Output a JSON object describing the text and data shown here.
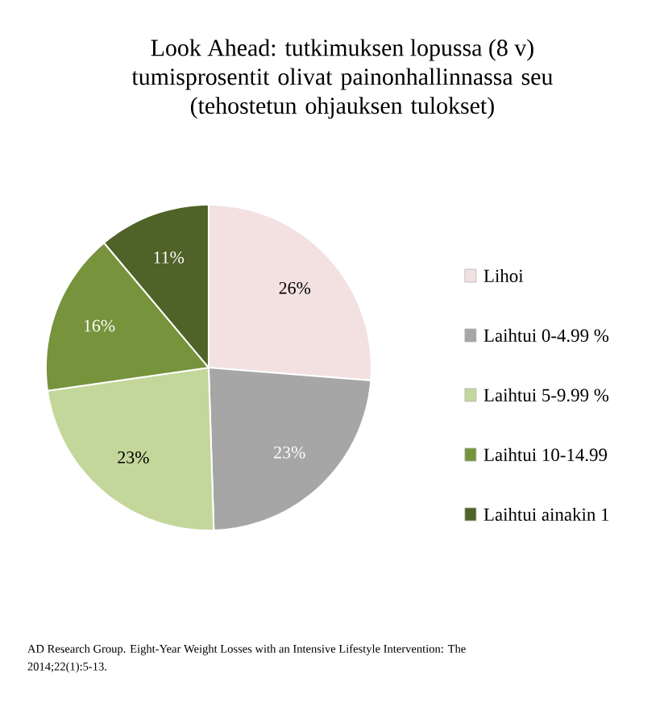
{
  "chart_data": {
    "type": "pie",
    "title": "Look Ahead: tutkimuksen lopussa (8 v)",
    "subtitle": "tumisprosentit olivat painonhallinnassa seu\n(tehostetun ohjauksen tulokset)",
    "categories": [
      "Lihoi",
      "Laihtui 0-4.99 %",
      "Laihtui 5-9.99 %",
      "Laihtui 10-14.99",
      "Laihtui ainakin 1"
    ],
    "values": [
      26,
      23,
      23,
      16,
      11
    ],
    "colors": [
      "#f3e1e1",
      "#a6a6a6",
      "#c4d79b",
      "#77933c",
      "#4f6228"
    ],
    "value_labels": [
      "26%",
      "23%",
      "23%",
      "16%",
      "11%"
    ],
    "legend": "right",
    "annotations": [
      "AD Research Group. Eight-Year Weight Losses with an Intensive Lifestyle Intervention: The",
      "2014;22(1):5-13."
    ]
  }
}
